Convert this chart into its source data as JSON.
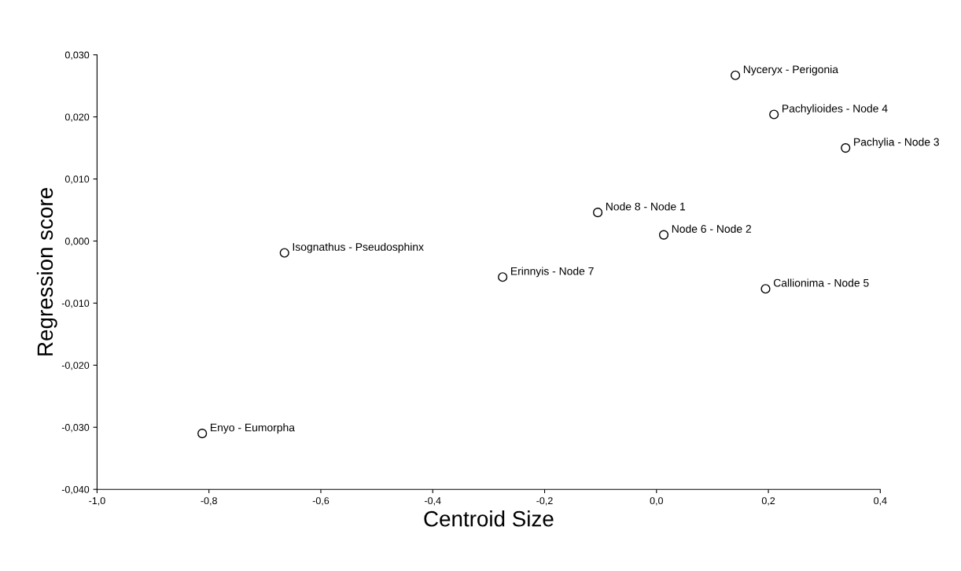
{
  "chart_data": {
    "type": "scatter",
    "xlabel": "Centroid Size",
    "ylabel": "Regression score",
    "x": [
      0.141,
      0.21,
      0.338,
      -0.105,
      0.013,
      -0.665,
      -0.275,
      0.195,
      -0.812
    ],
    "values": [
      0.0267,
      0.0204,
      0.015,
      0.0046,
      0.001,
      -0.0019,
      -0.0058,
      -0.0077,
      -0.031
    ],
    "color": "#000000",
    "marker": "circle",
    "grid": false,
    "legend": false,
    "annotations": [
      {
        "text": "Nyceryx - Perigonia",
        "x": 0.141,
        "y": 0.0267
      },
      {
        "text": "Pachylioides - Node 4",
        "x": 0.21,
        "y": 0.0204
      },
      {
        "text": "Pachylia - Node 3",
        "x": 0.338,
        "y": 0.015
      },
      {
        "text": "Node 8 - Node 1",
        "x": -0.105,
        "y": 0.0046
      },
      {
        "text": "Node 6 - Node 2",
        "x": 0.013,
        "y": 0.001
      },
      {
        "text": "Isognathus - Pseudosphinx",
        "x": -0.665,
        "y": -0.0019
      },
      {
        "text": "Erinnyis - Node 7",
        "x": -0.275,
        "y": -0.0058
      },
      {
        "text": "Callionima - Node 5",
        "x": 0.195,
        "y": -0.0077
      },
      {
        "text": "Enyo - Eumorpha",
        "x": -0.812,
        "y": -0.031
      }
    ],
    "xlim": [
      -1.0,
      0.4
    ],
    "xticks": [
      {
        "value": -1.0,
        "label": "-1,0"
      },
      {
        "value": -0.8,
        "label": "-0,8"
      },
      {
        "value": -0.6,
        "label": "-0,6"
      },
      {
        "value": -0.4,
        "label": "-0,4"
      },
      {
        "value": -0.2,
        "label": "-0,2"
      },
      {
        "value": 0.0,
        "label": "0,0"
      },
      {
        "value": 0.2,
        "label": "0,2"
      },
      {
        "value": 0.4,
        "label": "0,4"
      }
    ],
    "ylim": [
      -0.04,
      0.03
    ],
    "yticks": [
      {
        "value": -0.04,
        "label": "-0,040"
      },
      {
        "value": -0.03,
        "label": "-0,030"
      },
      {
        "value": -0.02,
        "label": "-0,020"
      },
      {
        "value": -0.01,
        "label": "-0,010"
      },
      {
        "value": 0.0,
        "label": "0,000"
      },
      {
        "value": 0.01,
        "label": "0,010"
      },
      {
        "value": 0.02,
        "label": "0,020"
      },
      {
        "value": 0.03,
        "label": "0,030"
      }
    ]
  }
}
